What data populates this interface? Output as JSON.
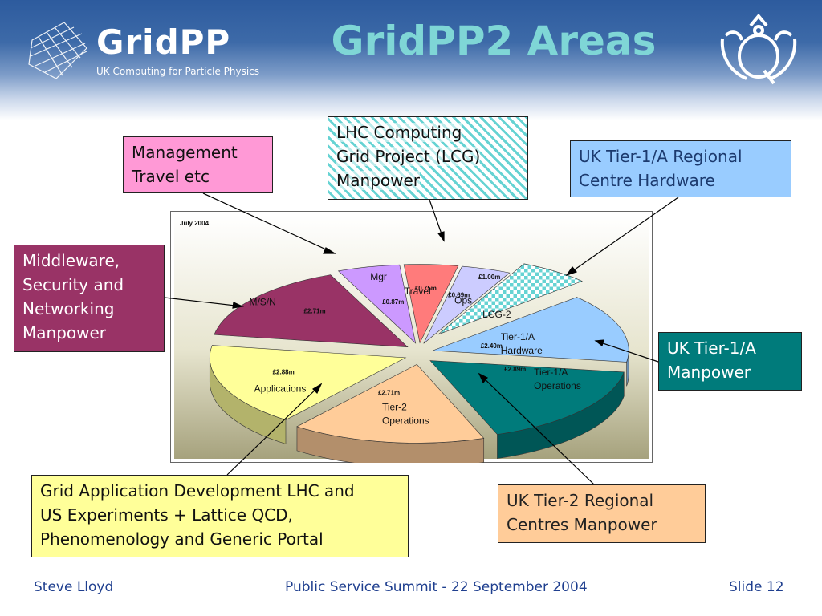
{
  "header": {
    "logo_text": "GridPP",
    "logo_tagline": "UK Computing for Particle Physics",
    "title": "GridPP2 Areas"
  },
  "callouts": {
    "management": [
      "Management",
      "Travel etc"
    ],
    "lcg": [
      "LHC Computing",
      "Grid Project (LCG)",
      "Manpower"
    ],
    "tier1_hardware": [
      "UK Tier-1/A Regional",
      "Centre Hardware"
    ],
    "middleware": [
      "Middleware,",
      "Security and",
      "Networking",
      "Manpower"
    ],
    "tier1_manpower": [
      "UK Tier-1/A",
      "Manpower"
    ],
    "applications": [
      "Grid Application Development LHC and",
      "US Experiments + Lattice QCD,",
      "Phenomenology and Generic Portal"
    ],
    "tier2": [
      "UK Tier-2 Regional",
      "Centres Manpower"
    ]
  },
  "chart_data": {
    "type": "pie",
    "date_label": "July 2004",
    "exploded_3d": true,
    "slices": [
      {
        "label": "LCG-2",
        "value_label": "£1.00m",
        "value": 1.0,
        "color": "#66d3d3",
        "pattern": "hatched"
      },
      {
        "label": "Tier-1/A Hardware",
        "value_label": "£2.40m",
        "value": 2.4,
        "color": "#99ccff"
      },
      {
        "label": "Tier-1/A Operations",
        "value_label": "£2.89m",
        "value": 2.89,
        "color": "#007b7b"
      },
      {
        "label": "Tier-2 Operations",
        "value_label": "£2.71m",
        "value": 2.71,
        "color": "#ffcc99"
      },
      {
        "label": "Applications",
        "value_label": "£2.88m",
        "value": 2.88,
        "color": "#ffff99"
      },
      {
        "label": "M/S/N",
        "value_label": "£2.71m",
        "value": 2.71,
        "color": "#993366"
      },
      {
        "label": "Mgr",
        "value_label": "£0.87m",
        "value": 0.87,
        "color": "#cc99ff"
      },
      {
        "label": "Travel",
        "value_label": "£0.75m",
        "value": 0.75,
        "color": "#ff7b7b"
      },
      {
        "label": "Ops",
        "value_label": "£0.69m",
        "value": 0.69,
        "color": "#ccccff"
      }
    ]
  },
  "footer": {
    "author": "Steve Lloyd",
    "event": "Public Service Summit - 22 September 2004",
    "slide": "Slide 12"
  }
}
